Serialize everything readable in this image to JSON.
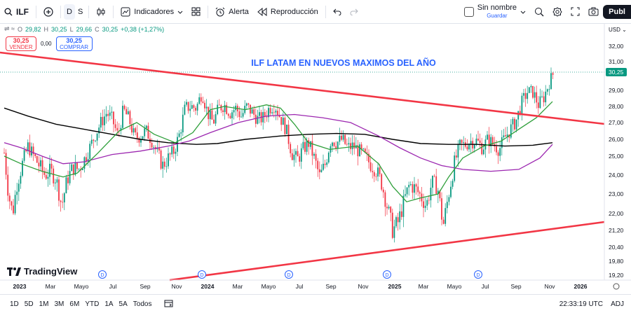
{
  "toolbar": {
    "symbol": "ILF",
    "interval_d": "D",
    "interval_s": "S",
    "indicators_label": "Indicadores",
    "alert_label": "Alerta",
    "replay_label": "Reproducción",
    "layout_name": "Sin nombre",
    "save_label": "Guardar",
    "publish_label": "Publ"
  },
  "legend": {
    "open_label": "O",
    "open": "29,82",
    "high_label": "H",
    "high": "30,25",
    "low_label": "L",
    "low": "29,66",
    "close_label": "C",
    "close": "30,25",
    "change": "+0,38 (+1,27%)"
  },
  "trade": {
    "sell_price": "30,25",
    "sell_label": "VENDER",
    "spread": "0,00",
    "buy_price": "30,25",
    "buy_label": "COMPRAR"
  },
  "annotation": "ILF LATAM EN NUEVOS MAXIMOS DEL AÑO",
  "currency": "USD",
  "last_price_badge": "30,25",
  "price_axis": [
    "32,00",
    "31,00",
    "29,00",
    "28,00",
    "27,00",
    "26,00",
    "25,00",
    "24,00",
    "23,00",
    "22,00",
    "21,20",
    "20,40",
    "19,80",
    "19,20"
  ],
  "time_axis": [
    "2023",
    "Mar",
    "Mayo",
    "Jul",
    "Sep",
    "Nov",
    "2024",
    "Mar",
    "Mayo",
    "Jul",
    "Sep",
    "Nov",
    "2025",
    "Mar",
    "Mayo",
    "Jul",
    "Sep",
    "Nov",
    "2026"
  ],
  "dividend_marker": "D",
  "logo_text": "TradingView",
  "ranges": [
    "1D",
    "5D",
    "1M",
    "3M",
    "6M",
    "YTD",
    "1A",
    "5A",
    "Todos"
  ],
  "clock": "22:33:19 UTC",
  "adj": "ADJ",
  "colors": {
    "trendline": "#f23645",
    "ma_fast": "#2e9f3a",
    "ma_mid": "#9c27b0",
    "ma_slow": "#000000",
    "up": "#089981",
    "down": "#f23645",
    "annotation": "#2962ff"
  }
}
